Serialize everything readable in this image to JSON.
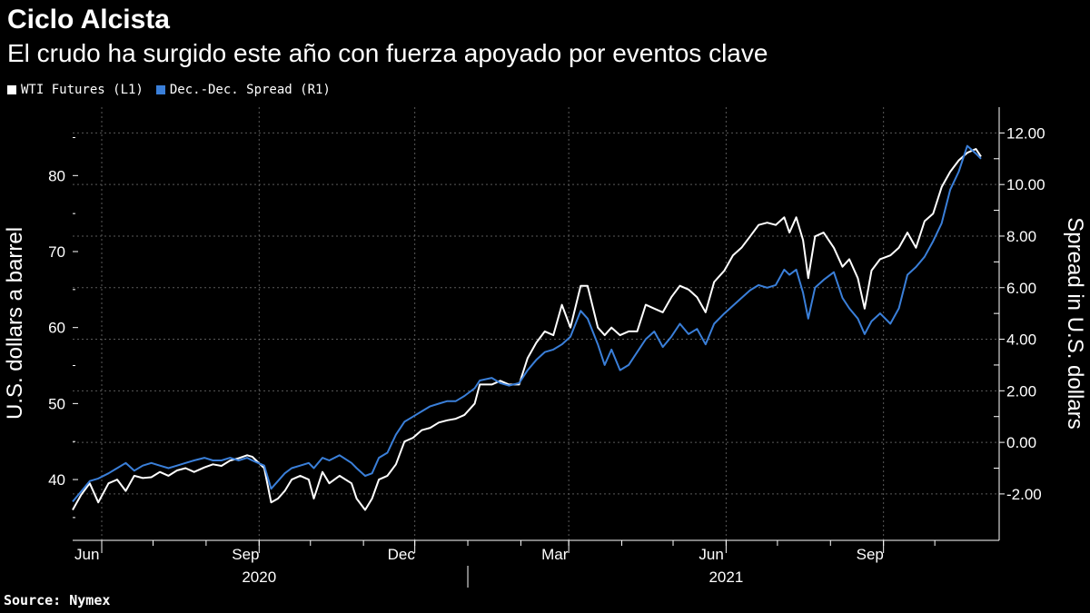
{
  "title": "Ciclo Alcista",
  "subtitle": "El crudo ha surgido este año con fuerza apoyado por eventos clave",
  "legend": [
    {
      "label": "WTI Futures (L1)",
      "color": "#ffffff"
    },
    {
      "label": "Dec.-Dec. Spread (R1)",
      "color": "#3a7fd9"
    }
  ],
  "source": "Source: Nymex",
  "chart_data": {
    "type": "line",
    "grid": true,
    "legend_position": "top-left",
    "x_range": [
      "2020-05-15",
      "2021-10-28"
    ],
    "x_month_labels": [
      {
        "date": "2020-06-01",
        "label": "Jun"
      },
      {
        "date": "2020-09-01",
        "label": "Sep"
      },
      {
        "date": "2020-12-01",
        "label": "Dec"
      },
      {
        "date": "2021-03-01",
        "label": "Mar"
      },
      {
        "date": "2021-06-01",
        "label": "Jun"
      },
      {
        "date": "2021-09-01",
        "label": "Sep"
      }
    ],
    "x_year_labels": [
      {
        "date": "2020-09-01",
        "label": "2020"
      },
      {
        "date": "2021-06-01",
        "label": "2021"
      }
    ],
    "left_axis": {
      "label": "U.S. dollars a barrel",
      "ylim": [
        32,
        89
      ],
      "ticks": [
        40,
        50,
        60,
        70,
        80
      ],
      "tick_labels": [
        "40",
        "50",
        "60",
        "70",
        "80"
      ]
    },
    "right_axis": {
      "label": "Spread in U.S. dollars",
      "ylim": [
        -3.8,
        13.0
      ],
      "ticks": [
        -2,
        0,
        2,
        4,
        6,
        8,
        10,
        12
      ],
      "tick_labels": [
        "-2.00",
        "0.00",
        "2.00",
        "4.00",
        "6.00",
        "8.00",
        "10.00",
        "12.00"
      ]
    },
    "series": [
      {
        "name": "WTI Futures (L1)",
        "axis": "left",
        "color": "#ffffff",
        "points": [
          [
            "2020-05-15",
            36.0
          ],
          [
            "2020-05-20",
            38.0
          ],
          [
            "2020-05-25",
            39.5
          ],
          [
            "2020-05-30",
            37.0
          ],
          [
            "2020-06-05",
            39.5
          ],
          [
            "2020-06-10",
            40.0
          ],
          [
            "2020-06-15",
            38.5
          ],
          [
            "2020-06-20",
            40.5
          ],
          [
            "2020-06-25",
            40.2
          ],
          [
            "2020-06-30",
            40.3
          ],
          [
            "2020-07-05",
            41.0
          ],
          [
            "2020-07-10",
            40.5
          ],
          [
            "2020-07-15",
            41.2
          ],
          [
            "2020-07-20",
            41.5
          ],
          [
            "2020-07-25",
            41.0
          ],
          [
            "2020-07-31",
            41.6
          ],
          [
            "2020-08-05",
            42.0
          ],
          [
            "2020-08-10",
            41.8
          ],
          [
            "2020-08-15",
            42.5
          ],
          [
            "2020-08-20",
            42.8
          ],
          [
            "2020-08-25",
            43.2
          ],
          [
            "2020-08-28",
            43.0
          ],
          [
            "2020-09-04",
            41.5
          ],
          [
            "2020-09-08",
            37.0
          ],
          [
            "2020-09-12",
            37.5
          ],
          [
            "2020-09-16",
            38.5
          ],
          [
            "2020-09-20",
            40.0
          ],
          [
            "2020-09-25",
            40.5
          ],
          [
            "2020-09-30",
            40.0
          ],
          [
            "2020-10-03",
            37.5
          ],
          [
            "2020-10-08",
            41.0
          ],
          [
            "2020-10-12",
            39.5
          ],
          [
            "2020-10-18",
            40.5
          ],
          [
            "2020-10-25",
            39.5
          ],
          [
            "2020-10-28",
            37.5
          ],
          [
            "2020-11-02",
            36.0
          ],
          [
            "2020-11-06",
            37.5
          ],
          [
            "2020-11-10",
            40.0
          ],
          [
            "2020-11-15",
            40.5
          ],
          [
            "2020-11-20",
            42.0
          ],
          [
            "2020-11-25",
            45.0
          ],
          [
            "2020-11-30",
            45.5
          ],
          [
            "2020-12-05",
            46.5
          ],
          [
            "2020-12-10",
            46.8
          ],
          [
            "2020-12-15",
            47.5
          ],
          [
            "2020-12-20",
            47.8
          ],
          [
            "2020-12-25",
            48.0
          ],
          [
            "2020-12-30",
            48.5
          ],
          [
            "2021-01-05",
            50.0
          ],
          [
            "2021-01-08",
            52.5
          ],
          [
            "2021-01-15",
            52.5
          ],
          [
            "2021-01-20",
            53.0
          ],
          [
            "2021-01-25",
            52.5
          ],
          [
            "2021-01-31",
            52.5
          ],
          [
            "2021-02-05",
            56.0
          ],
          [
            "2021-02-10",
            58.0
          ],
          [
            "2021-02-15",
            59.5
          ],
          [
            "2021-02-20",
            59.0
          ],
          [
            "2021-02-25",
            63.0
          ],
          [
            "2021-03-02",
            60.0
          ],
          [
            "2021-03-08",
            65.5
          ],
          [
            "2021-03-12",
            65.5
          ],
          [
            "2021-03-18",
            60.0
          ],
          [
            "2021-03-22",
            59.0
          ],
          [
            "2021-03-26",
            60.0
          ],
          [
            "2021-03-31",
            59.0
          ],
          [
            "2021-04-05",
            59.5
          ],
          [
            "2021-04-10",
            59.5
          ],
          [
            "2021-04-15",
            63.0
          ],
          [
            "2021-04-20",
            62.5
          ],
          [
            "2021-04-25",
            62.0
          ],
          [
            "2021-04-30",
            64.0
          ],
          [
            "2021-05-05",
            65.5
          ],
          [
            "2021-05-10",
            65.0
          ],
          [
            "2021-05-15",
            64.0
          ],
          [
            "2021-05-20",
            62.0
          ],
          [
            "2021-05-25",
            66.0
          ],
          [
            "2021-05-31",
            67.5
          ],
          [
            "2021-06-05",
            69.5
          ],
          [
            "2021-06-10",
            70.5
          ],
          [
            "2021-06-15",
            72.0
          ],
          [
            "2021-06-20",
            73.5
          ],
          [
            "2021-06-25",
            73.8
          ],
          [
            "2021-06-30",
            73.5
          ],
          [
            "2021-07-05",
            74.5
          ],
          [
            "2021-07-08",
            72.5
          ],
          [
            "2021-07-12",
            74.5
          ],
          [
            "2021-07-16",
            71.5
          ],
          [
            "2021-07-19",
            66.5
          ],
          [
            "2021-07-23",
            72.0
          ],
          [
            "2021-07-28",
            72.5
          ],
          [
            "2021-08-03",
            70.5
          ],
          [
            "2021-08-08",
            68.0
          ],
          [
            "2021-08-12",
            69.0
          ],
          [
            "2021-08-17",
            66.5
          ],
          [
            "2021-08-21",
            62.5
          ],
          [
            "2021-08-25",
            67.5
          ],
          [
            "2021-08-30",
            69.0
          ],
          [
            "2021-09-05",
            69.5
          ],
          [
            "2021-09-10",
            70.5
          ],
          [
            "2021-09-15",
            72.5
          ],
          [
            "2021-09-20",
            70.5
          ],
          [
            "2021-09-25",
            74.0
          ],
          [
            "2021-09-30",
            75.0
          ],
          [
            "2021-10-05",
            78.5
          ],
          [
            "2021-10-10",
            80.5
          ],
          [
            "2021-10-15",
            82.0
          ],
          [
            "2021-10-20",
            83.0
          ],
          [
            "2021-10-25",
            83.5
          ],
          [
            "2021-10-28",
            82.5
          ]
        ]
      },
      {
        "name": "Dec.-Dec. Spread (R1)",
        "axis": "right",
        "color": "#3a7fd9",
        "points": [
          [
            "2020-05-15",
            -2.3
          ],
          [
            "2020-05-20",
            -1.9
          ],
          [
            "2020-05-25",
            -1.5
          ],
          [
            "2020-05-30",
            -1.4
          ],
          [
            "2020-06-05",
            -1.2
          ],
          [
            "2020-06-10",
            -1.0
          ],
          [
            "2020-06-15",
            -0.8
          ],
          [
            "2020-06-20",
            -1.1
          ],
          [
            "2020-06-25",
            -0.9
          ],
          [
            "2020-06-30",
            -0.8
          ],
          [
            "2020-07-05",
            -0.9
          ],
          [
            "2020-07-10",
            -1.0
          ],
          [
            "2020-07-15",
            -0.9
          ],
          [
            "2020-07-20",
            -0.8
          ],
          [
            "2020-07-25",
            -0.7
          ],
          [
            "2020-07-31",
            -0.6
          ],
          [
            "2020-08-05",
            -0.7
          ],
          [
            "2020-08-10",
            -0.7
          ],
          [
            "2020-08-15",
            -0.6
          ],
          [
            "2020-08-20",
            -0.7
          ],
          [
            "2020-08-25",
            -0.6
          ],
          [
            "2020-08-28",
            -0.7
          ],
          [
            "2020-09-04",
            -0.9
          ],
          [
            "2020-09-08",
            -1.8
          ],
          [
            "2020-09-12",
            -1.5
          ],
          [
            "2020-09-16",
            -1.2
          ],
          [
            "2020-09-20",
            -1.0
          ],
          [
            "2020-09-25",
            -0.9
          ],
          [
            "2020-09-30",
            -0.8
          ],
          [
            "2020-10-03",
            -1.0
          ],
          [
            "2020-10-08",
            -0.6
          ],
          [
            "2020-10-12",
            -0.7
          ],
          [
            "2020-10-18",
            -0.5
          ],
          [
            "2020-10-25",
            -0.8
          ],
          [
            "2020-10-28",
            -1.0
          ],
          [
            "2020-11-02",
            -1.3
          ],
          [
            "2020-11-06",
            -1.2
          ],
          [
            "2020-11-10",
            -0.6
          ],
          [
            "2020-11-15",
            -0.4
          ],
          [
            "2020-11-20",
            0.3
          ],
          [
            "2020-11-25",
            0.8
          ],
          [
            "2020-11-30",
            1.0
          ],
          [
            "2020-12-05",
            1.2
          ],
          [
            "2020-12-10",
            1.4
          ],
          [
            "2020-12-15",
            1.5
          ],
          [
            "2020-12-20",
            1.6
          ],
          [
            "2020-12-25",
            1.6
          ],
          [
            "2020-12-30",
            1.8
          ],
          [
            "2021-01-05",
            2.1
          ],
          [
            "2021-01-08",
            2.4
          ],
          [
            "2021-01-15",
            2.5
          ],
          [
            "2021-01-20",
            2.3
          ],
          [
            "2021-01-25",
            2.2
          ],
          [
            "2021-01-31",
            2.3
          ],
          [
            "2021-02-05",
            2.8
          ],
          [
            "2021-02-10",
            3.2
          ],
          [
            "2021-02-15",
            3.5
          ],
          [
            "2021-02-20",
            3.6
          ],
          [
            "2021-02-25",
            3.8
          ],
          [
            "2021-03-02",
            4.1
          ],
          [
            "2021-03-08",
            5.1
          ],
          [
            "2021-03-12",
            4.8
          ],
          [
            "2021-03-18",
            3.8
          ],
          [
            "2021-03-22",
            3.0
          ],
          [
            "2021-03-26",
            3.6
          ],
          [
            "2021-03-31",
            2.8
          ],
          [
            "2021-04-05",
            3.0
          ],
          [
            "2021-04-10",
            3.5
          ],
          [
            "2021-04-15",
            4.0
          ],
          [
            "2021-04-20",
            4.3
          ],
          [
            "2021-04-25",
            3.7
          ],
          [
            "2021-04-30",
            4.1
          ],
          [
            "2021-05-05",
            4.6
          ],
          [
            "2021-05-10",
            4.2
          ],
          [
            "2021-05-15",
            4.4
          ],
          [
            "2021-05-20",
            3.8
          ],
          [
            "2021-05-25",
            4.6
          ],
          [
            "2021-05-31",
            5.0
          ],
          [
            "2021-06-05",
            5.3
          ],
          [
            "2021-06-10",
            5.6
          ],
          [
            "2021-06-15",
            5.9
          ],
          [
            "2021-06-20",
            6.1
          ],
          [
            "2021-06-25",
            6.0
          ],
          [
            "2021-06-30",
            6.1
          ],
          [
            "2021-07-05",
            6.7
          ],
          [
            "2021-07-08",
            6.5
          ],
          [
            "2021-07-12",
            6.7
          ],
          [
            "2021-07-16",
            5.8
          ],
          [
            "2021-07-19",
            4.8
          ],
          [
            "2021-07-23",
            6.0
          ],
          [
            "2021-07-28",
            6.3
          ],
          [
            "2021-08-03",
            6.6
          ],
          [
            "2021-08-08",
            5.6
          ],
          [
            "2021-08-12",
            5.2
          ],
          [
            "2021-08-17",
            4.8
          ],
          [
            "2021-08-21",
            4.2
          ],
          [
            "2021-08-25",
            4.7
          ],
          [
            "2021-08-30",
            5.0
          ],
          [
            "2021-09-05",
            4.6
          ],
          [
            "2021-09-10",
            5.2
          ],
          [
            "2021-09-15",
            6.5
          ],
          [
            "2021-09-20",
            6.8
          ],
          [
            "2021-09-25",
            7.2
          ],
          [
            "2021-09-30",
            7.8
          ],
          [
            "2021-10-05",
            8.5
          ],
          [
            "2021-10-10",
            9.8
          ],
          [
            "2021-10-15",
            10.5
          ],
          [
            "2021-10-20",
            11.5
          ],
          [
            "2021-10-25",
            11.2
          ],
          [
            "2021-10-28",
            11.0
          ]
        ]
      }
    ]
  }
}
